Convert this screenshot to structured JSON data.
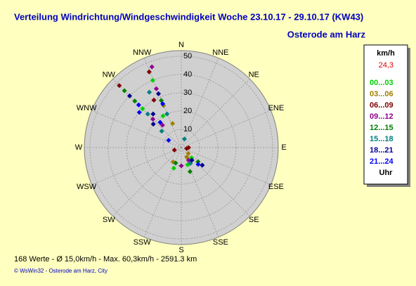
{
  "chart_data": {
    "type": "polar-scatter",
    "title": "Verteilung Windrichtung/Windgeschwindigkeit  Woche 23.10.17 - 29.10.17 (KW43)",
    "subtitle": "Osterode am Harz",
    "categories": [
      "N",
      "NNE",
      "NE",
      "ENE",
      "E",
      "ESE",
      "SE",
      "SSE",
      "S",
      "SSW",
      "SW",
      "WSW",
      "W",
      "WNW",
      "NW",
      "NNW"
    ],
    "rlim": [
      0,
      50
    ],
    "rticks": [
      10,
      20,
      30,
      40,
      50
    ],
    "grid": true,
    "legend_title": "km/h",
    "legend_value": "24,3",
    "legend_footer": "Uhr",
    "series": [
      {
        "name": "00...03",
        "color": "#00d000",
        "directions": [
          337,
          315,
          160,
          200,
          135,
          330
        ],
        "values": [
          40,
          30,
          10,
          12,
          8,
          20
        ]
      },
      {
        "name": "03...06",
        "color": "#a08000",
        "directions": [
          337,
          320,
          150,
          210,
          340,
          130
        ],
        "values": [
          25,
          18,
          6,
          9,
          14,
          5
        ]
      },
      {
        "name": "06...09",
        "color": "#800000",
        "directions": [
          337,
          315,
          100,
          90,
          250,
          330
        ],
        "values": [
          45,
          48,
          3,
          4,
          4,
          30
        ]
      },
      {
        "name": "09...12",
        "color": "#900090",
        "directions": [
          340,
          337,
          150,
          180,
          315,
          320
        ],
        "values": [
          47,
          35,
          8,
          10,
          22,
          16
        ]
      },
      {
        "name": "12...15",
        "color": "#008000",
        "directions": [
          315,
          337,
          200,
          160,
          130,
          315
        ],
        "values": [
          44,
          28,
          9,
          14,
          12,
          36
        ]
      },
      {
        "name": "15...18",
        "color": "#008080",
        "directions": [
          330,
          315,
          20,
          150,
          310,
          337
        ],
        "values": [
          35,
          26,
          5,
          10,
          14,
          20
        ]
      },
      {
        "name": "18...21",
        "color": "#000090",
        "directions": [
          315,
          310,
          140,
          130,
          320,
          337
        ],
        "values": [
          40,
          20,
          9,
          15,
          24,
          32
        ]
      },
      {
        "name": "21...24",
        "color": "#0000ff",
        "directions": [
          310,
          315,
          135,
          320,
          300,
          337
        ],
        "values": [
          30,
          33,
          13,
          18,
          8,
          26
        ]
      }
    ],
    "footer": "168 Werte   -   Ø 15,0km/h  -  Max. 60,3km/h  -   2591.3 km",
    "copyright": "© WsWin32  -  Osterode am Harz, City"
  }
}
